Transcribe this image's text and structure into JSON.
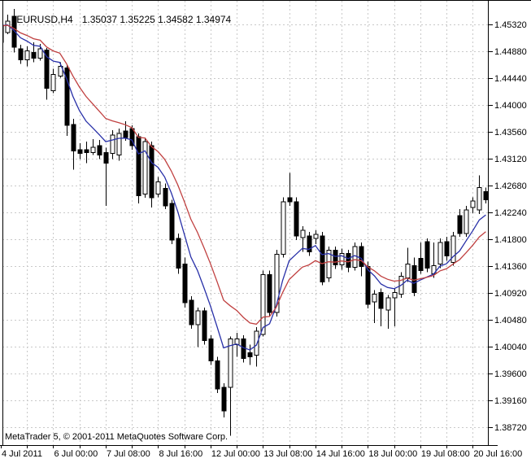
{
  "window": {
    "title_symbol_period": "EURUSD,H4",
    "title_ohlc": "1.35037 1.35225 1.34582 1.34974",
    "copyright": "MetaTrader 5, © 2001-2011 MetaQuotes Software Corp."
  },
  "colors": {
    "background": "#FFFFFF",
    "foreground": "#000000",
    "grid": "#C9C9C9",
    "bull_candle_fill": "#FFFFFF",
    "bear_candle_fill": "#000000",
    "candle_outline": "#000000",
    "ma_fast": "#2830A8",
    "ma_slow": "#C04040"
  },
  "chart_data": {
    "type": "candlestick",
    "symbol": "EURUSD",
    "timeframe": "H4",
    "title": "EURUSD,H4 1.35037 1.35225 1.34582 1.34974",
    "grid": true,
    "y_axis": {
      "side": "right",
      "tick_top_value": 1.4532,
      "tick_step": 0.0044,
      "tick_labels": [
        "1.45320",
        "1.44880",
        "1.44440",
        "1.44000",
        "1.43560",
        "1.43120",
        "1.42680",
        "1.42240",
        "1.41800",
        "1.41360",
        "1.40920",
        "1.40480",
        "1.40040",
        "1.39600",
        "1.39160",
        "1.38720"
      ]
    },
    "x_axis": {
      "side": "bottom",
      "bars_per_gridline": 4,
      "tick_bar_indices": [
        0,
        8,
        16,
        24,
        32,
        40,
        48,
        56,
        64,
        72
      ],
      "tick_labels": [
        "4 Jul 2011",
        "6 Jul 00:00",
        "7 Jul 08:00",
        "8 Jul 16:00",
        "12 Jul 00:00",
        "13 Jul 08:00",
        "14 Jul 16:00",
        "18 Jul 00:00",
        "19 Jul 08:00",
        "20 Jul 16:00"
      ]
    },
    "indicators": [
      {
        "name": "fast-ma",
        "type": "ema",
        "period": 7,
        "color_key": "ma_fast"
      },
      {
        "name": "slow-ma",
        "type": "ema",
        "period": 13,
        "color_key": "ma_slow"
      }
    ],
    "candles_ohlc": [
      [
        1.45029,
        1.4536,
        1.45003,
        1.45294
      ],
      [
        1.45188,
        1.45479,
        1.45161,
        1.45373
      ],
      [
        1.45452,
        1.45571,
        1.44857,
        1.4495
      ],
      [
        1.44923,
        1.44989,
        1.44672,
        1.44738
      ],
      [
        1.44738,
        1.44963,
        1.44632,
        1.44884
      ],
      [
        1.44857,
        1.45029,
        1.44698,
        1.44765
      ],
      [
        1.44765,
        1.45003,
        1.44725,
        1.44923
      ],
      [
        1.44897,
        1.44936,
        1.4409,
        1.44275
      ],
      [
        1.44236,
        1.44593,
        1.44196,
        1.445
      ],
      [
        1.44474,
        1.44698,
        1.44447,
        1.44632
      ],
      [
        1.44606,
        1.44659,
        1.43495,
        1.43667
      ],
      [
        1.4368,
        1.43773,
        1.4294,
        1.43244
      ],
      [
        1.4327,
        1.43376,
        1.43112,
        1.43204
      ],
      [
        1.4327,
        1.43402,
        1.43046,
        1.43217
      ],
      [
        1.43217,
        1.43442,
        1.43178,
        1.4331
      ],
      [
        1.43336,
        1.43429,
        1.43112,
        1.43178
      ],
      [
        1.43217,
        1.43297,
        1.42345,
        1.43046
      ],
      [
        1.43204,
        1.43587,
        1.43112,
        1.43508
      ],
      [
        1.43178,
        1.43614,
        1.43085,
        1.43535
      ],
      [
        1.43574,
        1.43733,
        1.43416,
        1.43468
      ],
      [
        1.43614,
        1.43667,
        1.4327,
        1.43336
      ],
      [
        1.43482,
        1.43535,
        1.42384,
        1.42516
      ],
      [
        1.42543,
        1.43468,
        1.42477,
        1.43402
      ],
      [
        1.43336,
        1.43402,
        1.42318,
        1.42477
      ],
      [
        1.42543,
        1.42821,
        1.4249,
        1.42741
      ],
      [
        1.42635,
        1.42715,
        1.42291,
        1.42345
      ],
      [
        1.42384,
        1.4245,
        1.41723,
        1.41789
      ],
      [
        1.41816,
        1.41895,
        1.41233,
        1.41326
      ],
      [
        1.41392,
        1.41498,
        1.40679,
        1.40758
      ],
      [
        1.40798,
        1.40864,
        1.40336,
        1.40402
      ],
      [
        1.40402,
        1.40679,
        1.40032,
        1.40626
      ],
      [
        1.40626,
        1.40679,
        1.40072,
        1.40138
      ],
      [
        1.40164,
        1.4023,
        1.39742,
        1.39808
      ],
      [
        1.39808,
        1.39874,
        1.39279,
        1.39345
      ],
      [
        1.39371,
        1.39437,
        1.38882,
        1.38988
      ],
      [
        1.39371,
        1.40204,
        1.38578,
        1.40164
      ],
      [
        1.40072,
        1.4027,
        1.39874,
        1.40164
      ],
      [
        1.40164,
        1.4023,
        1.39781,
        1.39847
      ],
      [
        1.3994,
        1.40072,
        1.39742,
        1.39874
      ],
      [
        1.399,
        1.40362,
        1.39715,
        1.40296
      ],
      [
        1.40243,
        1.41286,
        1.40204,
        1.4122
      ],
      [
        1.4122,
        1.41286,
        1.40534,
        1.406
      ],
      [
        1.406,
        1.4163,
        1.40534,
        1.41551
      ],
      [
        1.41551,
        1.4249,
        1.41498,
        1.42411
      ],
      [
        1.42477,
        1.42887,
        1.42345,
        1.42411
      ],
      [
        1.42411,
        1.4249,
        1.41789,
        1.41855
      ],
      [
        1.41829,
        1.42014,
        1.41591,
        1.41948
      ],
      [
        1.41855,
        1.41921,
        1.41525,
        1.41591
      ],
      [
        1.41816,
        1.41948,
        1.41723,
        1.41881
      ],
      [
        1.41855,
        1.41921,
        1.41048,
        1.41101
      ],
      [
        1.41167,
        1.41683,
        1.41101,
        1.41617
      ],
      [
        1.41617,
        1.41683,
        1.41313,
        1.41379
      ],
      [
        1.41379,
        1.41644,
        1.41299,
        1.41564
      ],
      [
        1.41564,
        1.4163,
        1.4126,
        1.41339
      ],
      [
        1.41339,
        1.41749,
        1.41286,
        1.41683
      ],
      [
        1.41683,
        1.41749,
        1.41194,
        1.41352
      ],
      [
        1.41352,
        1.41432,
        1.40666,
        1.40732
      ],
      [
        1.40771,
        1.40969,
        1.40428,
        1.40903
      ],
      [
        1.4093,
        1.40996,
        1.40375,
        1.40666
      ],
      [
        1.40639,
        1.4089,
        1.40336,
        1.40837
      ],
      [
        1.40837,
        1.40996,
        1.40375,
        1.4093
      ],
      [
        1.40903,
        1.4126,
        1.40837,
        1.41194
      ],
      [
        1.41167,
        1.41657,
        1.41101,
        1.41392
      ],
      [
        1.41366,
        1.41498,
        1.40864,
        1.4093
      ],
      [
        1.41485,
        1.41749,
        1.41233,
        1.41286
      ],
      [
        1.41763,
        1.41816,
        1.4126,
        1.41326
      ],
      [
        1.41233,
        1.41749,
        1.41167,
        1.41366
      ],
      [
        1.41392,
        1.41816,
        1.41326,
        1.41749
      ],
      [
        1.41763,
        1.41842,
        1.41445,
        1.41525
      ],
      [
        1.41419,
        1.41921,
        1.41366,
        1.41855
      ],
      [
        1.42186,
        1.42291,
        1.41842,
        1.41895
      ],
      [
        1.41895,
        1.42345,
        1.41842,
        1.42278
      ],
      [
        1.42318,
        1.4249,
        1.42225,
        1.42424
      ],
      [
        1.42278,
        1.42847,
        1.42212,
        1.42649
      ],
      [
        1.42583,
        1.42649,
        1.42384,
        1.4245
      ]
    ]
  }
}
